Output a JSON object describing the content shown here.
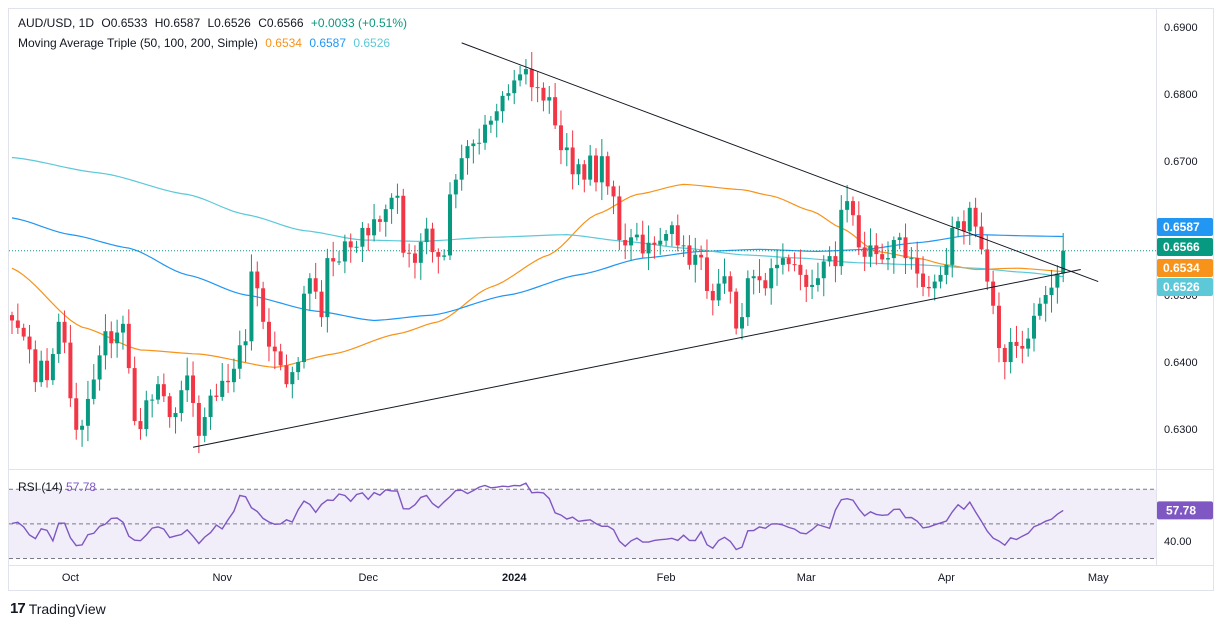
{
  "legend": {
    "symbol": "AUD/USD, 1D",
    "open": "O0.6533",
    "high": "H0.6587",
    "low": "L0.6526",
    "close": "C0.6566",
    "change": "+0.0033 (+0.51%)",
    "ma_title": "Moving Average Triple (50, 100, 200, Simple)",
    "ma50": "0.6534",
    "ma100": "0.6587",
    "ma200": "0.6526"
  },
  "rsi_legend": {
    "label": "RSI (14)",
    "value": "57.78"
  },
  "branding": {
    "name": "TradingView",
    "mark": "17"
  },
  "colors": {
    "up": "#089981",
    "down": "#f23645",
    "ma50": "#f7931a",
    "ma100": "#2196f3",
    "ma200": "#5cc8d8",
    "rsi": "#7e57c2",
    "trendline": "#131722"
  },
  "chart_data": [
    {
      "type": "candlestick",
      "title": "AUD/USD, 1D",
      "y_ticks": [
        "0.6900",
        "0.6800",
        "0.6700",
        "0.6600",
        "0.6500",
        "0.6400",
        "0.6300"
      ],
      "ylim": [
        0.6245,
        0.6925
      ],
      "x_ticks": [
        "Oct",
        "Nov",
        "Dec",
        "2024",
        "Feb",
        "Mar",
        "Apr",
        "May"
      ],
      "price_labels": [
        {
          "value": "0.6587",
          "color": "#2196f3"
        },
        {
          "value": "0.6566",
          "color": "#089981"
        },
        {
          "value": "0.6534",
          "color": "#f7931a"
        },
        {
          "value": "0.6526",
          "color": "#5cc8d8"
        }
      ],
      "close_series": [
        0.6462,
        0.6451,
        0.6438,
        0.6419,
        0.637,
        0.6402,
        0.6373,
        0.6412,
        0.646,
        0.6429,
        0.6346,
        0.6299,
        0.6305,
        0.6345,
        0.6374,
        0.641,
        0.6446,
        0.6428,
        0.6444,
        0.6457,
        0.6391,
        0.6312,
        0.63,
        0.6343,
        0.6344,
        0.6367,
        0.6349,
        0.6318,
        0.6324,
        0.6358,
        0.638,
        0.6339,
        0.629,
        0.6318,
        0.635,
        0.6348,
        0.6372,
        0.637,
        0.639,
        0.6425,
        0.6431,
        0.6535,
        0.651,
        0.646,
        0.6423,
        0.6416,
        0.6395,
        0.6367,
        0.6385,
        0.64,
        0.6502,
        0.6525,
        0.6505,
        0.6467,
        0.6555,
        0.655,
        0.655,
        0.658,
        0.6571,
        0.6572,
        0.66,
        0.6589,
        0.6613,
        0.6609,
        0.6628,
        0.6645,
        0.6648,
        0.6563,
        0.6562,
        0.6548,
        0.6579,
        0.6599,
        0.6564,
        0.6557,
        0.6559,
        0.665,
        0.6672,
        0.6704,
        0.6722,
        0.6726,
        0.6727,
        0.6754,
        0.676,
        0.6774,
        0.6797,
        0.6801,
        0.682,
        0.6829,
        0.6837,
        0.681,
        0.6809,
        0.679,
        0.6795,
        0.6753,
        0.6716,
        0.672,
        0.668,
        0.6695,
        0.6672,
        0.6708,
        0.6668,
        0.6707,
        0.6662,
        0.6647,
        0.6582,
        0.6574,
        0.6586,
        0.659,
        0.6562,
        0.6578,
        0.6575,
        0.6581,
        0.6591,
        0.6604,
        0.6574,
        0.6574,
        0.6545,
        0.656,
        0.6556,
        0.6506,
        0.6492,
        0.6517,
        0.6528,
        0.6505,
        0.645,
        0.6467,
        0.6525,
        0.6528,
        0.6522,
        0.651,
        0.654,
        0.6545,
        0.6555,
        0.6546,
        0.6545,
        0.653,
        0.6512,
        0.6515,
        0.6525,
        0.655,
        0.6558,
        0.6543,
        0.6627,
        0.664,
        0.6619,
        0.6571,
        0.6557,
        0.6574,
        0.6561,
        0.6553,
        0.6555,
        0.6582,
        0.6586,
        0.6555,
        0.6555,
        0.6532,
        0.6512,
        0.651,
        0.652,
        0.653,
        0.6545,
        0.66,
        0.661,
        0.6595,
        0.663,
        0.6602,
        0.6568,
        0.652,
        0.6484,
        0.6421,
        0.64,
        0.643,
        0.6424,
        0.642,
        0.6435,
        0.6469,
        0.6487,
        0.65,
        0.6511,
        0.6532,
        0.6566
      ],
      "series": [
        {
          "name": "MA 50",
          "color": "#f7931a",
          "anchors": [
            [
              0,
              0.654
            ],
            [
              12,
              0.6452
            ],
            [
              22,
              0.6418
            ],
            [
              32,
              0.6412
            ],
            [
              45,
              0.6392
            ],
            [
              55,
              0.6412
            ],
            [
              66,
              0.6442
            ],
            [
              73,
              0.646
            ],
            [
              82,
              0.6512
            ],
            [
              92,
              0.656
            ],
            [
              100,
              0.662
            ],
            [
              107,
              0.665
            ],
            [
              115,
              0.6665
            ],
            [
              125,
              0.6657
            ],
            [
              130,
              0.6648
            ],
            [
              137,
              0.6625
            ],
            [
              142,
              0.66
            ],
            [
              148,
              0.6565
            ],
            [
              155,
              0.6555
            ],
            [
              160,
              0.6545
            ],
            [
              165,
              0.6538
            ],
            [
              172,
              0.654
            ],
            [
              182,
              0.6534
            ]
          ]
        },
        {
          "name": "MA 100",
          "color": "#2196f3",
          "anchors": [
            [
              0,
              0.6615
            ],
            [
              10,
              0.659
            ],
            [
              20,
              0.657
            ],
            [
              30,
              0.653
            ],
            [
              40,
              0.65
            ],
            [
              52,
              0.6476
            ],
            [
              62,
              0.6462
            ],
            [
              72,
              0.647
            ],
            [
              85,
              0.65
            ],
            [
              97,
              0.653
            ],
            [
              108,
              0.6555
            ],
            [
              118,
              0.6565
            ],
            [
              128,
              0.6568
            ],
            [
              138,
              0.6565
            ],
            [
              146,
              0.6568
            ],
            [
              155,
              0.6578
            ],
            [
              165,
              0.659
            ],
            [
              175,
              0.6588
            ],
            [
              182,
              0.6587
            ]
          ]
        },
        {
          "name": "MA 200",
          "color": "#5cc8d8",
          "anchors": [
            [
              0,
              0.6705
            ],
            [
              15,
              0.6682
            ],
            [
              30,
              0.665
            ],
            [
              40,
              0.662
            ],
            [
              50,
              0.6596
            ],
            [
              60,
              0.6582
            ],
            [
              70,
              0.658
            ],
            [
              82,
              0.6586
            ],
            [
              95,
              0.659
            ],
            [
              105,
              0.658
            ],
            [
              115,
              0.657
            ],
            [
              125,
              0.656
            ],
            [
              135,
              0.6555
            ],
            [
              145,
              0.6548
            ],
            [
              155,
              0.6545
            ],
            [
              165,
              0.654
            ],
            [
              173,
              0.6534
            ],
            [
              182,
              0.6526
            ]
          ]
        }
      ],
      "trendlines": [
        {
          "from": [
            31,
            0.6273
          ],
          "to": [
            183,
            0.6538
          ]
        },
        {
          "from": [
            77,
            0.6876
          ],
          "to": [
            186,
            0.652
          ]
        }
      ]
    },
    {
      "type": "line",
      "title": "RSI (14)",
      "ylim": [
        28,
        80
      ],
      "y_ticks": [
        "40.00"
      ],
      "value_label": "57.78",
      "levels": [
        70,
        50,
        30
      ],
      "values": [
        50.3,
        51.0,
        48.2,
        43.6,
        41.5,
        47.2,
        46.3,
        40.2,
        50.4,
        50.4,
        42.0,
        37.5,
        37.9,
        43.8,
        44.6,
        48.6,
        49.9,
        53.2,
        53.4,
        51.0,
        42.9,
        40.6,
        40.3,
        43.6,
        47.6,
        48.3,
        47.0,
        42.1,
        43.1,
        43.9,
        46.6,
        42.9,
        38.7,
        42.4,
        45.0,
        49.3,
        47.1,
        52.5,
        57.3,
        66.4,
        65.7,
        59.4,
        57.2,
        53.2,
        51.1,
        49.8,
        50.0,
        52.4,
        51.1,
        58.2,
        63.2,
        61.3,
        56.7,
        61.3,
        63.8,
        63.6,
        67.3,
        66.4,
        63.1,
        67.0,
        67.9,
        64.2,
        68.1,
        66.6,
        69.7,
        69.1,
        69.0,
        58.8,
        58.7,
        61.1,
        65.3,
        66.4,
        61.8,
        59.4,
        62.8,
        65.8,
        69.3,
        69.5,
        67.5,
        69.3,
        71.3,
        72.2,
        70.9,
        71.2,
        71.8,
        71.5,
        72.2,
        72.0,
        73.6,
        68.0,
        68.3,
        67.9,
        64.6,
        56.4,
        55.1,
        52.8,
        53.9,
        51.5,
        52.0,
        52.4,
        50.2,
        48.6,
        48.7,
        46.7,
        40.0,
        37.1,
        40.2,
        41.8,
        39.5,
        39.5,
        40.5,
        40.9,
        41.2,
        41.7,
        40.5,
        43.5,
        40.5,
        40.4,
        45.5,
        38.0,
        36.0,
        40.4,
        42.3,
        39.9,
        35.2,
        36.6,
        46.0,
        46.2,
        48.3,
        47.5,
        49.9,
        50.1,
        49.4,
        48.0,
        47.0,
        44.8,
        44.3,
        46.7,
        49.6,
        48.5,
        47.5,
        58.0,
        64.0,
        64.6,
        63.7,
        58.7,
        54.7,
        57.0,
        55.5,
        55.0,
        55.3,
        58.4,
        58.5,
        53.6,
        53.7,
        51.6,
        47.7,
        48.3,
        49.5,
        50.6,
        51.7,
        56.9,
        61.1,
        58.5,
        62.6,
        56.9,
        51.6,
        45.8,
        41.8,
        40.1,
        37.7,
        42.0,
        41.0,
        42.9,
        44.6,
        48.4,
        49.7,
        51.6,
        52.7,
        55.6,
        57.8
      ]
    }
  ],
  "x_positions_note": ""
}
